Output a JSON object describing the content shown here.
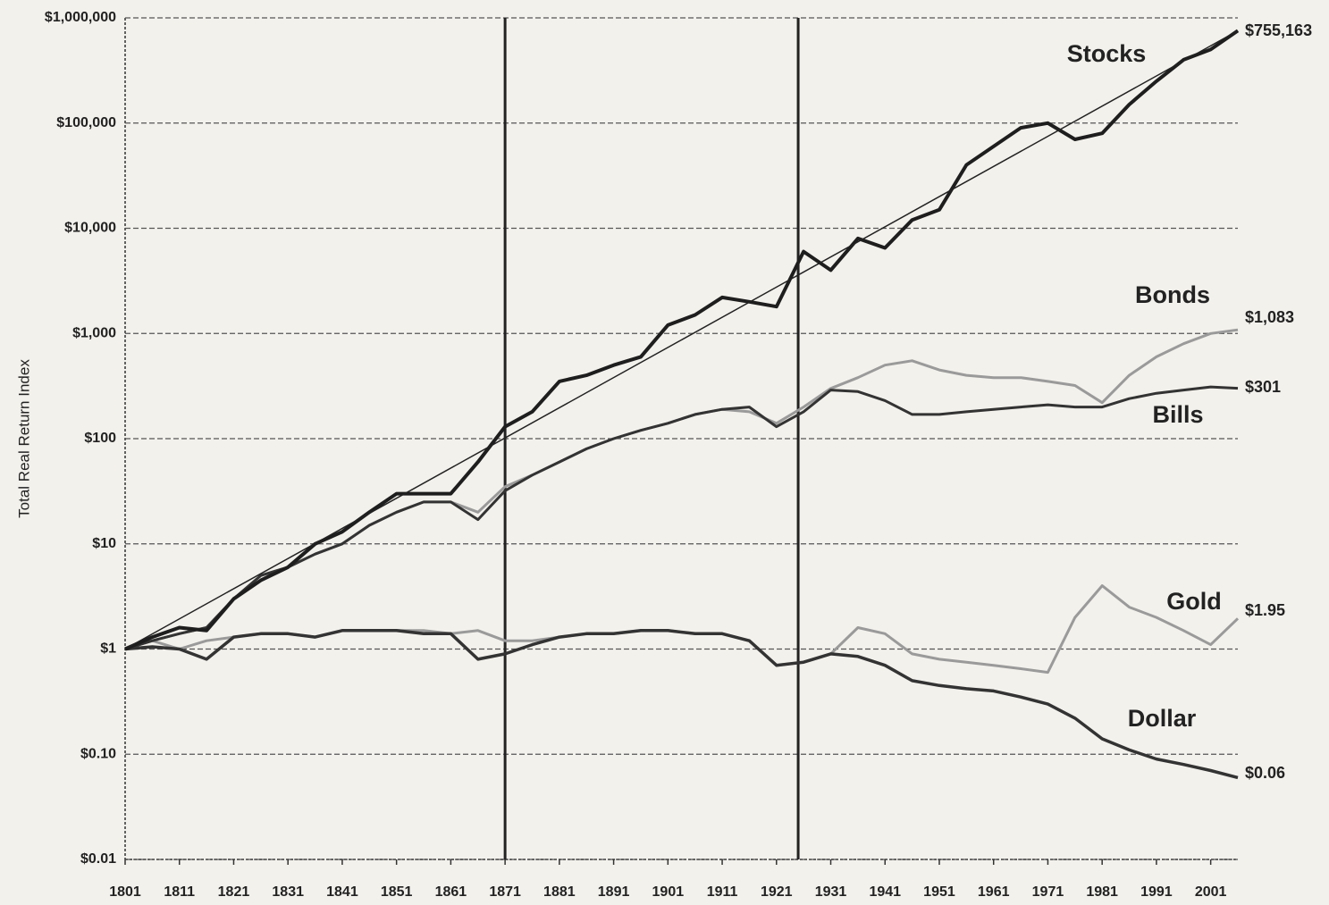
{
  "chart_data": {
    "type": "line",
    "y_label": "Total Real Return Index",
    "log_y": true,
    "grid": true,
    "x": [
      1801,
      1806,
      1811,
      1816,
      1821,
      1826,
      1831,
      1836,
      1841,
      1846,
      1851,
      1856,
      1861,
      1866,
      1871,
      1876,
      1881,
      1886,
      1891,
      1896,
      1901,
      1906,
      1911,
      1916,
      1921,
      1926,
      1931,
      1936,
      1941,
      1946,
      1951,
      1956,
      1961,
      1966,
      1971,
      1976,
      1981,
      1986,
      1991,
      1996,
      2001,
      2006
    ],
    "xlim": [
      1801,
      2006
    ],
    "xticks": [
      1801,
      1811,
      1821,
      1831,
      1841,
      1851,
      1861,
      1871,
      1881,
      1891,
      1901,
      1911,
      1921,
      1931,
      1941,
      1951,
      1961,
      1971,
      1981,
      1991,
      2001
    ],
    "ylim": [
      0.01,
      1000000
    ],
    "yticks": [
      {
        "value": 0.01,
        "label": "$0.01"
      },
      {
        "value": 0.1,
        "label": "$0.10"
      },
      {
        "value": 1,
        "label": "$1"
      },
      {
        "value": 10,
        "label": "$10"
      },
      {
        "value": 100,
        "label": "$100"
      },
      {
        "value": 1000,
        "label": "$1,000"
      },
      {
        "value": 10000,
        "label": "$10,000"
      },
      {
        "value": 100000,
        "label": "$100,000"
      },
      {
        "value": 1000000,
        "label": "$1,000,000"
      }
    ],
    "vlines": [
      1871,
      1925
    ],
    "trend": {
      "x": [
        1801,
        2006
      ],
      "values": [
        1,
        755163
      ],
      "color": "#222222"
    },
    "series": [
      {
        "name": "Stocks",
        "color": "#1e1e1e",
        "values": [
          1,
          1.3,
          1.6,
          1.5,
          3,
          4.5,
          6,
          10,
          13,
          20,
          30,
          30,
          30,
          60,
          130,
          180,
          350,
          400,
          500,
          600,
          1200,
          1500,
          2200,
          2000,
          1800,
          6000,
          4000,
          8000,
          6500,
          12000,
          15000,
          40000,
          60000,
          90000,
          100000,
          70000,
          80000,
          150000,
          250000,
          400000,
          500000,
          755163
        ],
        "value_labels": [
          null,
          null,
          null,
          null,
          null,
          null,
          null,
          null,
          null,
          null,
          null,
          null,
          null,
          null,
          null,
          null,
          null,
          null,
          null,
          null,
          null,
          null,
          null,
          null,
          null,
          null,
          null,
          null,
          null,
          null,
          null,
          null,
          null,
          null,
          null,
          null,
          null,
          null,
          null,
          null,
          null,
          "$755,163"
        ]
      },
      {
        "name": "Bonds",
        "color": "#9a9a9a",
        "values": [
          1,
          1.2,
          1.4,
          1.6,
          3,
          5,
          6,
          8,
          10,
          15,
          20,
          25,
          25,
          20,
          35,
          45,
          60,
          80,
          100,
          120,
          140,
          170,
          190,
          180,
          140,
          200,
          300,
          380,
          500,
          550,
          450,
          400,
          380,
          380,
          350,
          320,
          220,
          400,
          600,
          800,
          1000,
          1083
        ],
        "value_labels": [
          null,
          null,
          null,
          null,
          null,
          null,
          null,
          null,
          null,
          null,
          null,
          null,
          null,
          null,
          null,
          null,
          null,
          null,
          null,
          null,
          null,
          null,
          null,
          null,
          null,
          null,
          null,
          null,
          null,
          null,
          null,
          null,
          null,
          null,
          null,
          null,
          null,
          null,
          null,
          null,
          null,
          "$1,083"
        ]
      },
      {
        "name": "Bills",
        "color": "#333333",
        "values": [
          1,
          1.2,
          1.4,
          1.6,
          3,
          5,
          6,
          8,
          10,
          15,
          20,
          25,
          25,
          17,
          32,
          45,
          60,
          80,
          100,
          120,
          140,
          170,
          190,
          200,
          130,
          180,
          290,
          280,
          230,
          170,
          170,
          180,
          190,
          200,
          210,
          200,
          200,
          240,
          270,
          290,
          310,
          301
        ],
        "value_labels": [
          null,
          null,
          null,
          null,
          null,
          null,
          null,
          null,
          null,
          null,
          null,
          null,
          null,
          null,
          null,
          null,
          null,
          null,
          null,
          null,
          null,
          null,
          null,
          null,
          null,
          null,
          null,
          null,
          null,
          null,
          null,
          null,
          null,
          null,
          null,
          null,
          null,
          null,
          null,
          null,
          null,
          "$301"
        ]
      },
      {
        "name": "Gold",
        "color": "#9a9a9a",
        "values": [
          1,
          1.2,
          1,
          1.2,
          1.3,
          1.4,
          1.4,
          1.3,
          1.5,
          1.5,
          1.5,
          1.5,
          1.4,
          1.5,
          1.2,
          1.2,
          1.3,
          1.4,
          1.4,
          1.5,
          1.5,
          1.4,
          1.4,
          1.2,
          0.7,
          0.75,
          0.9,
          1.6,
          1.4,
          0.9,
          0.8,
          0.75,
          0.7,
          0.65,
          0.6,
          2,
          4,
          2.5,
          2,
          1.5,
          1.1,
          1.95
        ],
        "value_labels": [
          null,
          null,
          null,
          null,
          null,
          null,
          null,
          null,
          null,
          null,
          null,
          null,
          null,
          null,
          null,
          null,
          null,
          null,
          null,
          null,
          null,
          null,
          null,
          null,
          null,
          null,
          null,
          null,
          null,
          null,
          null,
          null,
          null,
          null,
          null,
          null,
          null,
          null,
          null,
          null,
          null,
          "$1.95"
        ]
      },
      {
        "name": "Dollar",
        "color": "#333333",
        "values": [
          1,
          1.05,
          1,
          0.8,
          1.3,
          1.4,
          1.4,
          1.3,
          1.5,
          1.5,
          1.5,
          1.4,
          1.4,
          0.8,
          0.9,
          1.1,
          1.3,
          1.4,
          1.4,
          1.5,
          1.5,
          1.4,
          1.4,
          1.2,
          0.7,
          0.75,
          0.9,
          0.85,
          0.7,
          0.5,
          0.45,
          0.42,
          0.4,
          0.35,
          0.3,
          0.22,
          0.14,
          0.11,
          0.09,
          0.08,
          0.07,
          0.06
        ],
        "value_labels": [
          null,
          null,
          null,
          null,
          null,
          null,
          null,
          null,
          null,
          null,
          null,
          null,
          null,
          null,
          null,
          null,
          null,
          null,
          null,
          null,
          null,
          null,
          null,
          null,
          null,
          null,
          null,
          null,
          null,
          null,
          null,
          null,
          null,
          null,
          null,
          null,
          null,
          null,
          null,
          null,
          null,
          "$0.06"
        ]
      }
    ]
  }
}
